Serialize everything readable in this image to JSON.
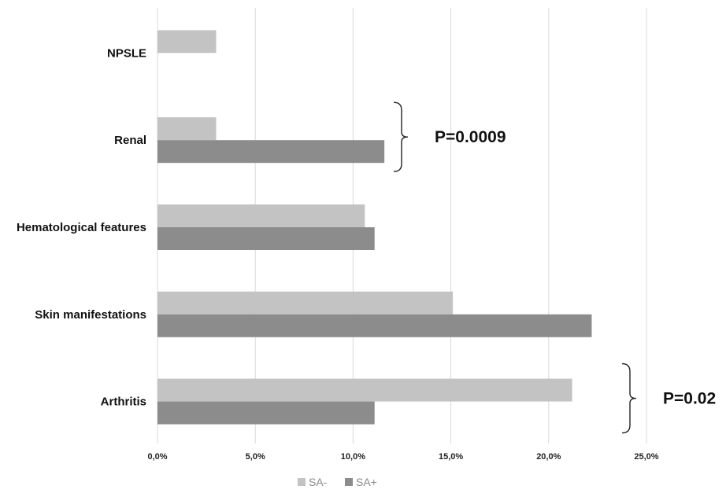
{
  "chart_data": {
    "type": "bar",
    "orientation": "horizontal",
    "categories": [
      "NPSLE",
      "Renal",
      "Hematological features",
      "Skin manifestations",
      "Arthritis"
    ],
    "series": [
      {
        "name": "SA-",
        "color": "#c3c3c3",
        "values": [
          3.0,
          3.0,
          10.6,
          15.1,
          21.2
        ]
      },
      {
        "name": "SA+",
        "color": "#8c8c8c",
        "values": [
          null,
          11.6,
          11.1,
          22.2,
          11.1
        ]
      }
    ],
    "x_ticks": [
      "0,0%",
      "5,0%",
      "10,0%",
      "15,0%",
      "20,0%",
      "25,0%"
    ],
    "xlim": [
      0,
      25
    ],
    "grid": true,
    "legend_position": "bottom",
    "annotations": [
      {
        "category": "Renal",
        "text": "P=0.0009"
      },
      {
        "category": "Arthritis",
        "text": "P=0.02"
      }
    ]
  }
}
